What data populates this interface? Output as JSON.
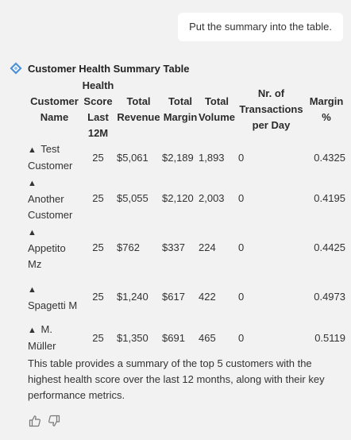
{
  "user_message": "Put the summary into the table.",
  "assistant": {
    "title": "Customer Health Summary Table",
    "columns": {
      "customer_name": [
        "Customer",
        "Name"
      ],
      "health_score": [
        "Health",
        "Score",
        "Last",
        "12M"
      ],
      "total_revenue": [
        "Total",
        "Revenue"
      ],
      "total_margin": [
        "Total",
        "Margin"
      ],
      "total_volume": [
        "Total",
        "Volume"
      ],
      "transactions": [
        "Nr. of",
        "Transactions",
        "per Day"
      ],
      "margin_pct": [
        "Margin",
        "%"
      ]
    },
    "rows": [
      {
        "marker": "▲",
        "name": "Test Customer",
        "score": "25",
        "revenue": "$5,061",
        "margin": "$2,189",
        "volume": "1,893",
        "transactions": "0",
        "margin_pct": "0.4325"
      },
      {
        "marker": "▲",
        "name": "Another Customer",
        "score": "25",
        "revenue": "$5,055",
        "margin": "$2,120",
        "volume": "2,003",
        "transactions": "0",
        "margin_pct": "0.4195"
      },
      {
        "marker": "▲",
        "name": "Appetito Mz",
        "score": "25",
        "revenue": "$762",
        "margin": "$337",
        "volume": "224",
        "transactions": "0",
        "margin_pct": "0.4425"
      },
      {
        "marker": "▲",
        "name": "Spagetti M",
        "score": "25",
        "revenue": "$1,240",
        "margin": "$617",
        "volume": "422",
        "transactions": "0",
        "margin_pct": "0.4973"
      },
      {
        "marker": "▲",
        "name": "M. Müller",
        "score": "25",
        "revenue": "$1,350",
        "margin": "$691",
        "volume": "465",
        "transactions": "0",
        "margin_pct": "0.5119"
      }
    ],
    "summary": "This table provides a summary of the top 5 customers with the highest health score over the last 12 months, along with their key performance metrics."
  },
  "icons": {
    "assistant": "bot-logo-icon",
    "like": "thumbs-up-icon",
    "dislike": "thumbs-down-icon"
  },
  "colors": {
    "background": "#f2f2f3",
    "bubble": "#ffffff",
    "logo": "#4a8fd8"
  }
}
